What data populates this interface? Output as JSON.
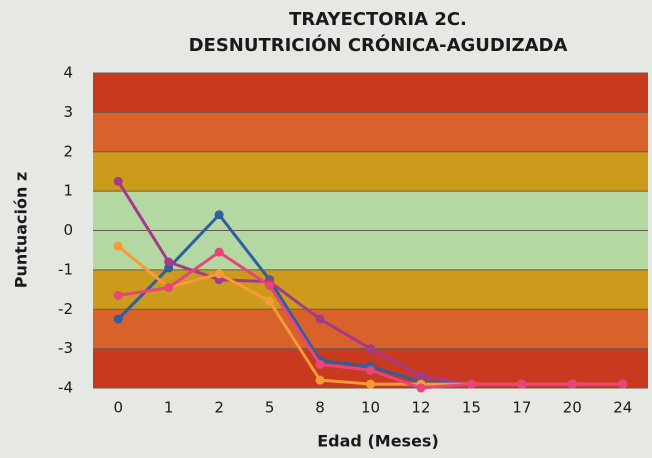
{
  "chart_data": {
    "type": "line",
    "title": [
      "TRAYECTORIA 2C.",
      "DESNUTRICIÓN CRÓNICA-AGUDIZADA"
    ],
    "x_label": "Edad (Meses)",
    "y_label": "Puntuación z",
    "categories": [
      "0",
      "1",
      "2",
      "5",
      "8",
      "10",
      "12",
      "15",
      "17",
      "20",
      "24"
    ],
    "ylim": [
      -4,
      4
    ],
    "yticks": [
      -4,
      -3,
      -2,
      -1,
      0,
      1,
      2,
      3,
      4
    ],
    "grid": true,
    "bands": [
      {
        "from": -4,
        "to": -3,
        "color": "#c8391f"
      },
      {
        "from": -3,
        "to": -2,
        "color": "#d9622a"
      },
      {
        "from": -2,
        "to": -1,
        "color": "#cc9b1c"
      },
      {
        "from": -1,
        "to": 1,
        "color": "#b3d8a2"
      },
      {
        "from": 1,
        "to": 2,
        "color": "#cc9b1c"
      },
      {
        "from": 2,
        "to": 3,
        "color": "#d9622a"
      },
      {
        "from": 3,
        "to": 4,
        "color": "#c8391f"
      }
    ],
    "series": [
      {
        "color": "#2f5f9e",
        "values": [
          -2.25,
          -0.95,
          0.4,
          -1.25,
          -3.3,
          -3.45,
          -3.85,
          -3.9,
          -3.9,
          -3.9,
          -3.9
        ]
      },
      {
        "color": "#a23c8a",
        "values": [
          1.25,
          -0.8,
          -1.25,
          -1.3,
          -2.25,
          -3.0,
          -3.7,
          -3.9,
          -3.9,
          -3.9,
          -3.9
        ]
      },
      {
        "color": "#f79a3a",
        "values": [
          -0.4,
          -1.45,
          -1.1,
          -1.8,
          -3.8,
          -3.9,
          -3.9,
          -3.9,
          -3.9,
          -3.9,
          -3.9
        ]
      },
      {
        "color": "#e8457a",
        "values": [
          -1.65,
          -1.45,
          -0.55,
          -1.4,
          -3.4,
          -3.55,
          -4.0,
          -3.9,
          -3.9,
          -3.9,
          -3.9
        ]
      }
    ]
  }
}
